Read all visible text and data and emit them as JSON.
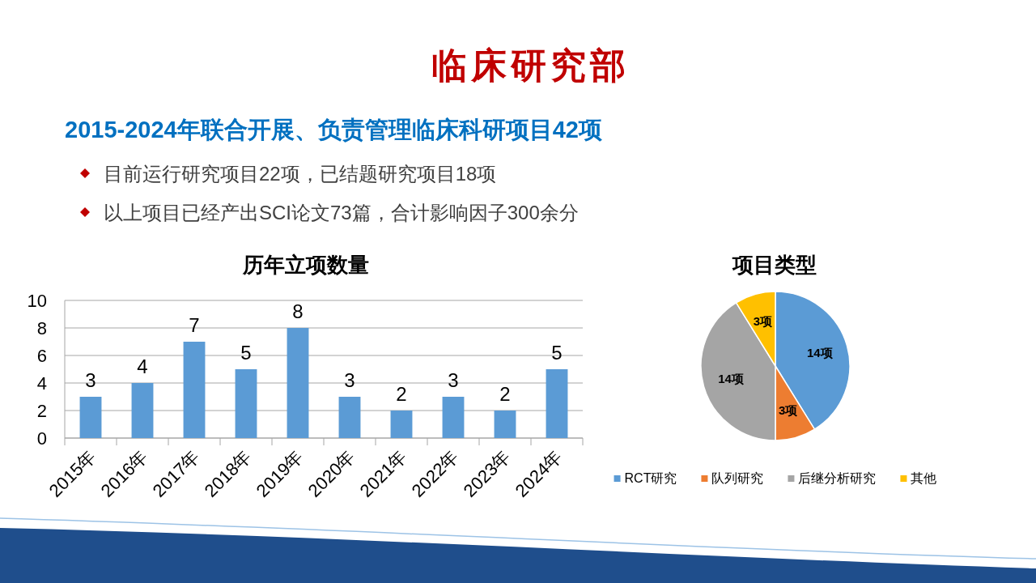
{
  "chart_data": [
    {
      "type": "other",
      "title": "临床研究部",
      "subtitle": "2015-2024年联合开展、负责管理临床科研项目42项",
      "annotations": [
        "目前运行研究项目22项，已结题研究项目18项",
        "以上项目已经产出SCI论文73篇，合计影响因子300余分"
      ]
    },
    {
      "type": "bar",
      "title": "历年立项数量",
      "categories": [
        "2015年",
        "2016年",
        "2017年",
        "2018年",
        "2019年",
        "2020年",
        "2021年",
        "2022年",
        "2023年",
        "2024年"
      ],
      "values": [
        3,
        4,
        7,
        5,
        8,
        3,
        2,
        3,
        2,
        5
      ],
      "color": "#5b9bd5",
      "ylim": [
        0,
        10
      ],
      "yticks": [
        0,
        2,
        4,
        6,
        8,
        10
      ],
      "grid": "y",
      "data_labels": true
    },
    {
      "type": "pie",
      "title": "项目类型",
      "categories": [
        "RCT研究",
        "队列研究",
        "后继分析研究",
        "其他"
      ],
      "values": [
        14,
        3,
        14,
        3
      ],
      "colors": [
        "#5b9bd5",
        "#ed7d31",
        "#a5a5a5",
        "#ffc000"
      ],
      "value_labels": [
        "14项",
        "3项",
        "14项",
        "3项"
      ],
      "legend": "bottom"
    }
  ]
}
